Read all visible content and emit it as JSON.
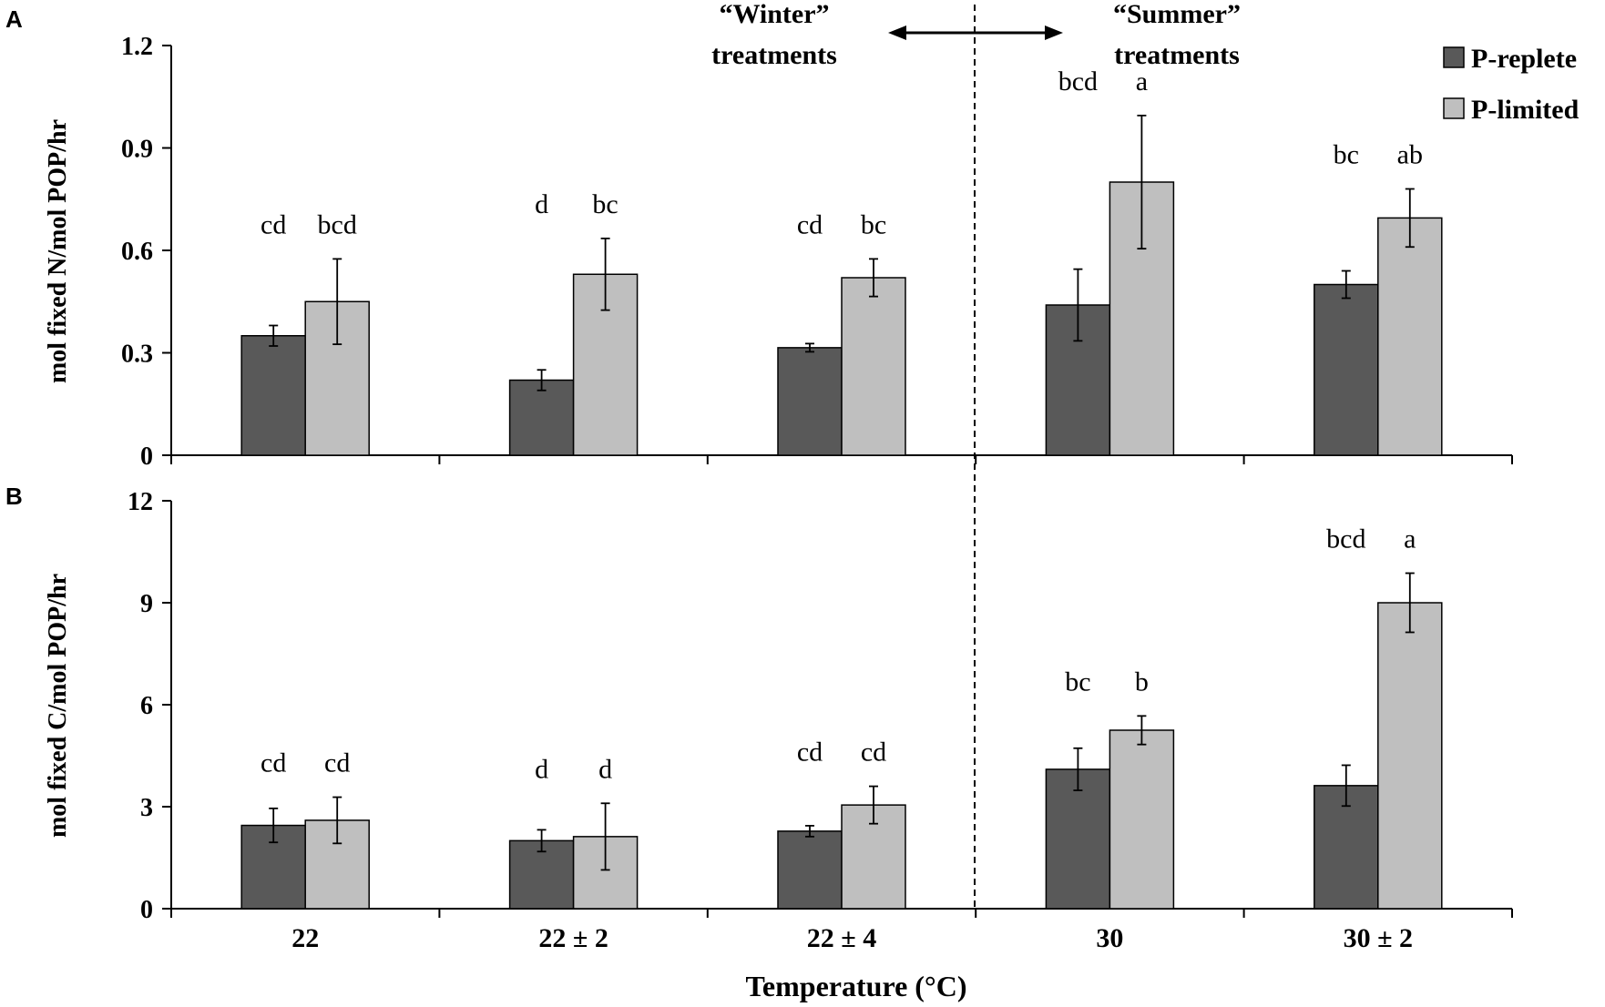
{
  "colors": {
    "p_replete": "#595959",
    "p_limited": "#bfbfbf",
    "axis": "#000000"
  },
  "annotations": {
    "winter_label": [
      "“Winter”",
      "treatments"
    ],
    "summer_label": [
      "“Summer”",
      "treatments"
    ]
  },
  "legend": [
    {
      "name": "P-replete",
      "color": "#595959"
    },
    {
      "name": "P-limited",
      "color": "#bfbfbf"
    }
  ],
  "chart_data": [
    {
      "panel": "A",
      "type": "bar",
      "title": "",
      "xlabel": "",
      "ylabel": "mol fixed N/mol POP/hr",
      "ylim": [
        0,
        1.2
      ],
      "yticks": [
        "0",
        "0.3",
        "0.6",
        "0.9",
        "1.2"
      ],
      "categories": [
        "22",
        "22 ± 2",
        "22 ± 4",
        "30",
        "30 ± 2"
      ],
      "series": [
        {
          "name": "P-replete",
          "values": [
            0.35,
            0.22,
            0.315,
            0.44,
            0.5
          ],
          "errors": [
            0.03,
            0.03,
            0.012,
            0.105,
            0.04
          ],
          "letters": [
            "cd",
            "d",
            "cd",
            "bcd",
            "bc"
          ]
        },
        {
          "name": "P-limited",
          "values": [
            0.45,
            0.53,
            0.52,
            0.8,
            0.695
          ],
          "errors": [
            0.125,
            0.105,
            0.055,
            0.195,
            0.085
          ],
          "letters": [
            "bcd",
            "bc",
            "bc",
            "a",
            "ab"
          ]
        }
      ]
    },
    {
      "panel": "B",
      "type": "bar",
      "title": "",
      "xlabel": "Temperature (°C)",
      "ylabel": "mol fixed C/mol POP/hr",
      "ylim": [
        0,
        12
      ],
      "yticks": [
        "0",
        "3",
        "6",
        "9",
        "12"
      ],
      "categories": [
        "22",
        "22 ± 2",
        "22 ± 4",
        "30",
        "30 ± 2"
      ],
      "series": [
        {
          "name": "P-replete",
          "values": [
            2.45,
            2.0,
            2.28,
            4.1,
            3.62
          ],
          "errors": [
            0.5,
            0.32,
            0.16,
            0.62,
            0.6
          ],
          "letters": [
            "cd",
            "d",
            "cd",
            "bc",
            "bcd"
          ]
        },
        {
          "name": "P-limited",
          "values": [
            2.6,
            2.12,
            3.05,
            5.25,
            9.0
          ],
          "errors": [
            0.68,
            0.98,
            0.55,
            0.42,
            0.87
          ],
          "letters": [
            "cd",
            "d",
            "cd",
            "b",
            "a"
          ]
        }
      ]
    }
  ]
}
